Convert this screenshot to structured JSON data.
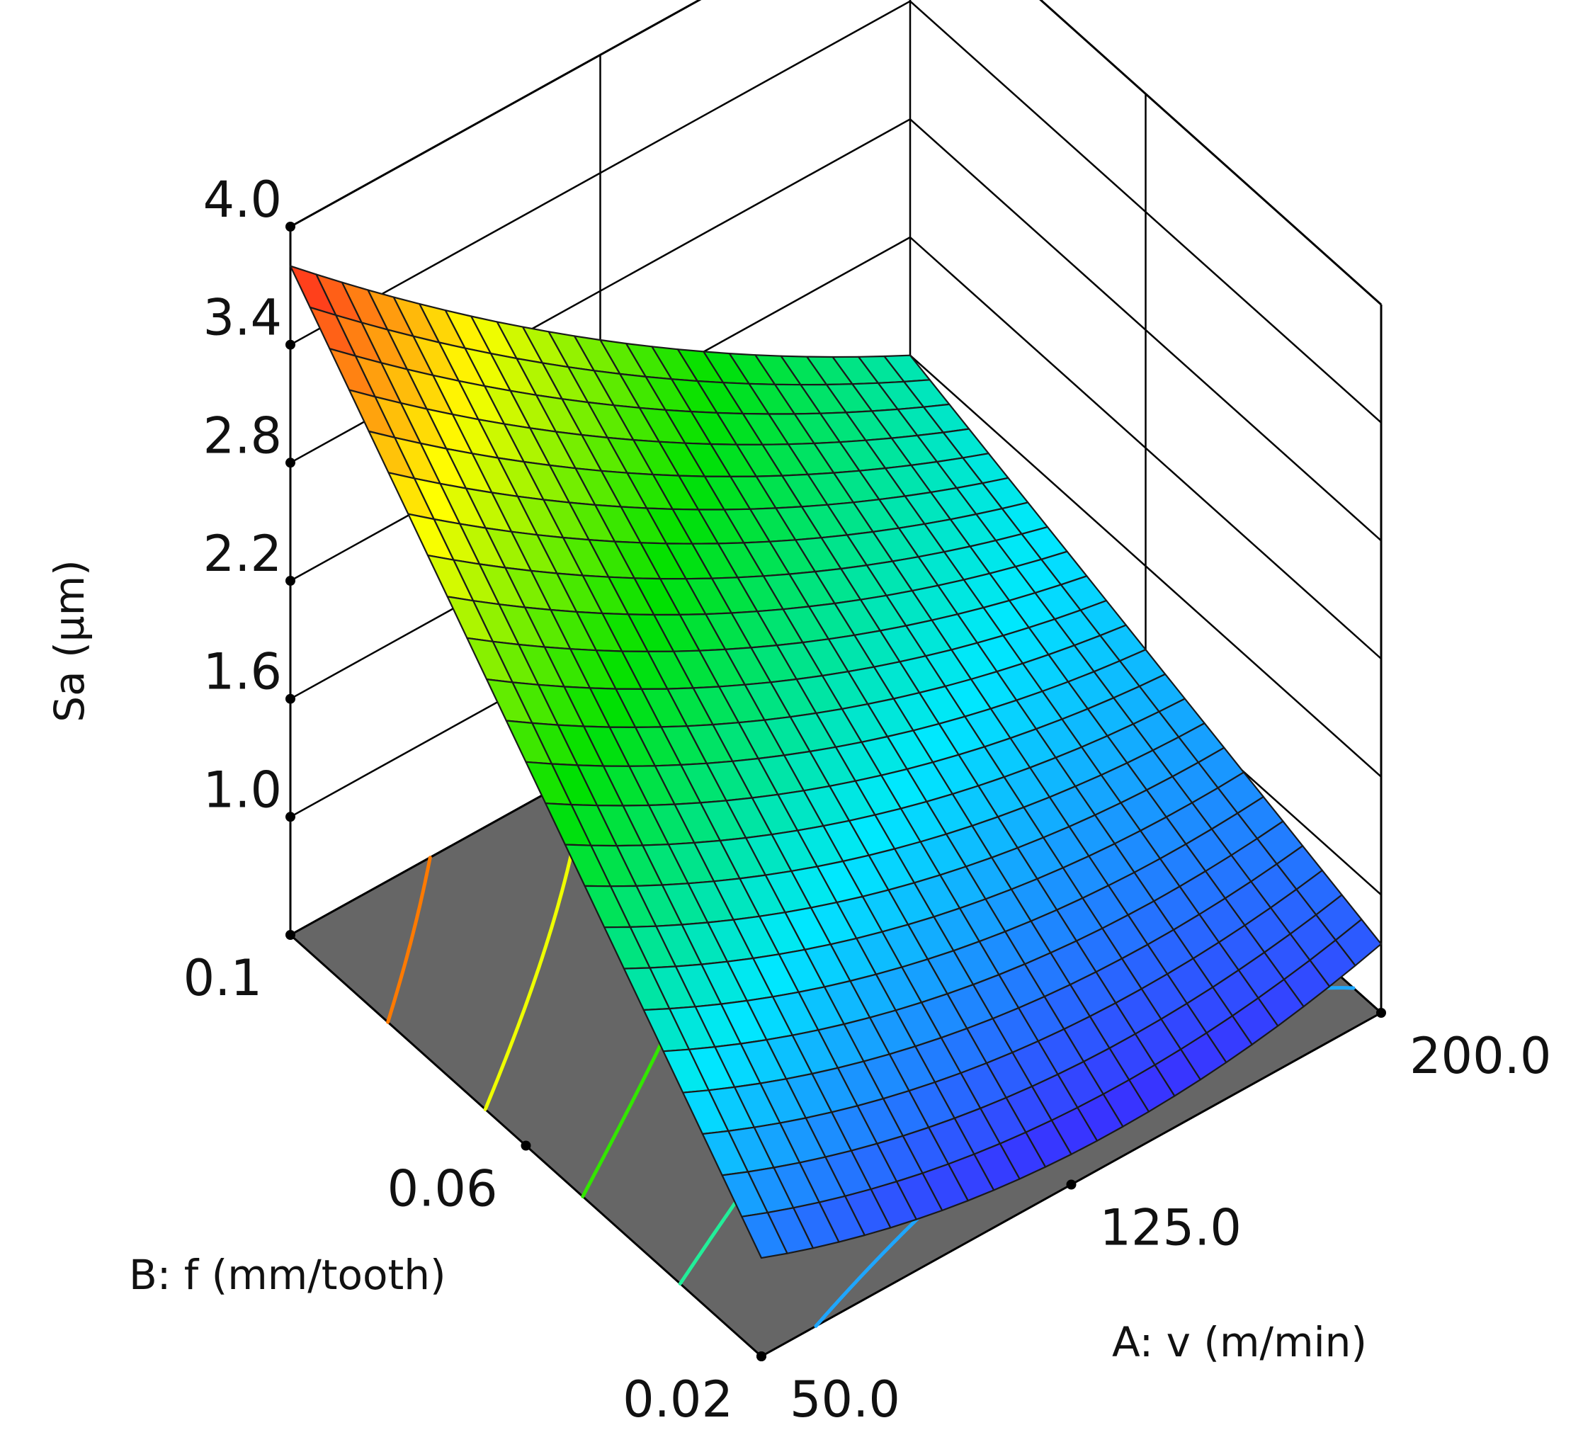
{
  "chart_data": {
    "type": "surface",
    "xlabel": "A: v (m/min)",
    "ylabel": "B: f (mm/tooth)",
    "zlabel": "Sa (µm)",
    "x_ticks": [
      "50.0",
      "125.0",
      "200.0"
    ],
    "y_ticks": [
      "0.02",
      "0.06",
      "0.1"
    ],
    "z_ticks": [
      "1.0",
      "1.6",
      "2.2",
      "2.8",
      "3.4",
      "4.0"
    ],
    "xlim": [
      50,
      200
    ],
    "ylim": [
      0.02,
      0.1
    ],
    "zlim": [
      0.4,
      4.0
    ],
    "grid": true,
    "floor_color": "#666666",
    "colormap": [
      "#3b2bff",
      "#00e8ff",
      "#00e000",
      "#ffff00",
      "#ff2020"
    ],
    "surface_corners": [
      {
        "v": 50,
        "f": 0.02,
        "Sa": 0.9
      },
      {
        "v": 200,
        "f": 0.02,
        "Sa": 0.75
      },
      {
        "v": 50,
        "f": 0.1,
        "Sa": 3.8
      },
      {
        "v": 200,
        "f": 0.1,
        "Sa": 1.6
      }
    ],
    "surface_min": {
      "v": 140,
      "f": 0.02,
      "Sa": 0.55
    },
    "contour_levels": [
      {
        "Sa": 3.2,
        "color": "#ff7a00"
      },
      {
        "Sa": 2.6,
        "color": "#eeff00"
      },
      {
        "Sa": 2.0,
        "color": "#33e600"
      },
      {
        "Sa": 1.4,
        "color": "#22ee99"
      },
      {
        "Sa": 0.8,
        "color": "#1ea6ff"
      }
    ]
  }
}
